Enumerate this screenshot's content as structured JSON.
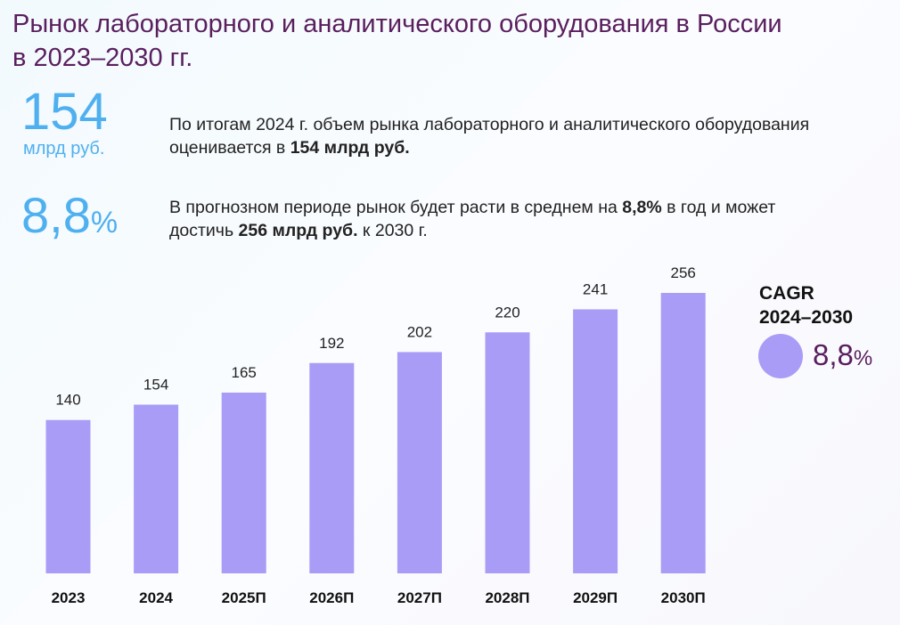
{
  "header": {
    "title_line1": "Рынок лабораторного и аналитического оборудования в России",
    "title_line2": "в 2023–2030 гг."
  },
  "kpis": [
    {
      "value": "154",
      "unit": "млрд руб.",
      "text_pre": "По итогам 2024 г. объем рынка лабораторного и аналитического оборудования оценивается в ",
      "text_bold": "154 млрд руб."
    },
    {
      "value": "8,8",
      "unit": "%",
      "text_pre": "В прогнозном периоде рынок будет расти в среднем на ",
      "text_bold": "8,8%",
      "text_mid": " в год и может достичь ",
      "text_bold2": "256 млрд руб.",
      "text_post": " к 2030 г."
    }
  ],
  "cagr": {
    "label_line1": "CAGR",
    "label_line2": "2024–2030",
    "value": "8,8",
    "unit": "%"
  },
  "colors": {
    "bar": "#a99cf7",
    "title": "#5a1f5e",
    "kpi": "#4fb0f0"
  },
  "chart_data": {
    "type": "bar",
    "categories": [
      "2023",
      "2024",
      "2025П",
      "2026П",
      "2027П",
      "2028П",
      "2029П",
      "2030П"
    ],
    "values": [
      140,
      154,
      165,
      192,
      202,
      220,
      241,
      256
    ],
    "ylim": [
      0,
      256
    ],
    "xlabel": "",
    "ylabel": "",
    "grid": false
  }
}
